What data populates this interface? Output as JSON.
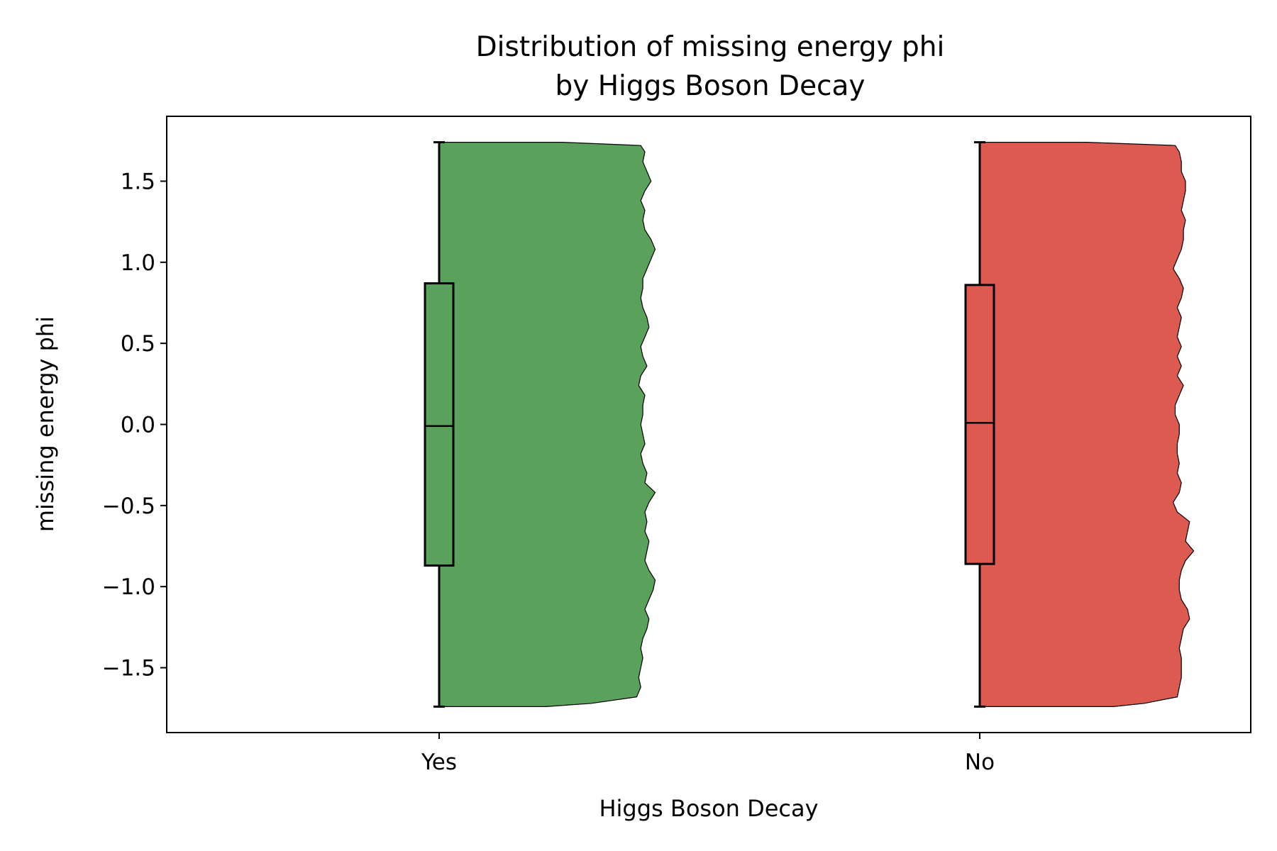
{
  "chart_data": {
    "type": "raincloud",
    "title_lines": [
      "Distribution of missing energy phi",
      "by Higgs Boson Decay"
    ],
    "xlabel": "Higgs Boson Decay",
    "ylabel": "missing energy phi",
    "ylim": [
      -1.9,
      1.9
    ],
    "yticks": [
      1.5,
      1.0,
      0.5,
      0.0,
      -0.5,
      -1.0,
      -1.5
    ],
    "ytick_labels": [
      "1.5",
      "1.0",
      "0.5",
      "0.0",
      "−0.5",
      "−1.0",
      "−1.5"
    ],
    "categories": [
      "Yes",
      "No"
    ],
    "groups": [
      {
        "category": "Yes",
        "color": "#5aa25c",
        "box": {
          "min": -1.74,
          "q1": -0.87,
          "median": -0.01,
          "q3": 0.87,
          "max": 1.74
        },
        "density_y": [
          1.74,
          1.72,
          1.68,
          1.62,
          1.56,
          1.5,
          1.44,
          1.38,
          1.32,
          1.26,
          1.2,
          1.14,
          1.08,
          1.02,
          0.96,
          0.9,
          0.84,
          0.78,
          0.72,
          0.66,
          0.6,
          0.54,
          0.48,
          0.42,
          0.36,
          0.3,
          0.24,
          0.18,
          0.12,
          0.06,
          0.0,
          -0.06,
          -0.12,
          -0.18,
          -0.24,
          -0.3,
          -0.36,
          -0.42,
          -0.48,
          -0.54,
          -0.6,
          -0.66,
          -0.72,
          -0.78,
          -0.84,
          -0.9,
          -0.96,
          -1.02,
          -1.08,
          -1.14,
          -1.2,
          -1.26,
          -1.32,
          -1.38,
          -1.44,
          -1.5,
          -1.56,
          -1.62,
          -1.68,
          -1.72,
          -1.74
        ],
        "density_w": [
          0.6,
          0.98,
          1.0,
          0.99,
          1.01,
          1.03,
          1.0,
          0.98,
          1.0,
          0.99,
          1.0,
          1.03,
          1.05,
          1.03,
          1.01,
          0.99,
          0.99,
          0.98,
          0.99,
          1.01,
          1.02,
          1.0,
          0.98,
          0.99,
          1.01,
          0.98,
          0.97,
          1.0,
          0.99,
          0.99,
          0.98,
          0.99,
          1.0,
          0.98,
          0.99,
          1.01,
          1.0,
          1.05,
          1.02,
          1.0,
          1.01,
          1.0,
          1.02,
          1.01,
          1.0,
          1.02,
          1.05,
          1.04,
          1.02,
          1.0,
          1.02,
          1.01,
          0.99,
          0.98,
          0.99,
          0.98,
          0.97,
          0.98,
          0.96,
          0.74,
          0.52
        ]
      },
      {
        "category": "No",
        "color": "#dd5a50",
        "box": {
          "min": -1.74,
          "q1": -0.86,
          "median": 0.01,
          "q3": 0.86,
          "max": 1.74
        },
        "density_y": [
          1.74,
          1.72,
          1.68,
          1.62,
          1.56,
          1.5,
          1.44,
          1.38,
          1.32,
          1.26,
          1.2,
          1.14,
          1.08,
          1.02,
          0.96,
          0.9,
          0.84,
          0.78,
          0.72,
          0.66,
          0.6,
          0.54,
          0.48,
          0.42,
          0.36,
          0.3,
          0.24,
          0.18,
          0.12,
          0.06,
          0.0,
          -0.06,
          -0.12,
          -0.18,
          -0.24,
          -0.3,
          -0.36,
          -0.42,
          -0.48,
          -0.54,
          -0.6,
          -0.66,
          -0.72,
          -0.78,
          -0.84,
          -0.9,
          -0.96,
          -1.02,
          -1.08,
          -1.14,
          -1.2,
          -1.26,
          -1.32,
          -1.38,
          -1.44,
          -1.5,
          -1.56,
          -1.62,
          -1.68,
          -1.72,
          -1.74
        ],
        "density_w": [
          0.52,
          0.95,
          0.97,
          0.98,
          0.98,
          1.0,
          1.0,
          0.99,
          0.98,
          1.0,
          0.99,
          0.99,
          0.98,
          0.96,
          0.94,
          0.97,
          0.99,
          0.98,
          0.96,
          0.98,
          0.97,
          0.96,
          0.98,
          0.96,
          0.98,
          0.96,
          0.99,
          0.97,
          0.95,
          0.95,
          0.97,
          0.97,
          0.96,
          0.96,
          0.97,
          0.96,
          0.98,
          0.97,
          0.94,
          0.96,
          1.02,
          1.01,
          1.0,
          1.04,
          1.0,
          0.98,
          0.97,
          0.97,
          0.98,
          1.01,
          1.02,
          0.99,
          0.98,
          0.97,
          0.98,
          0.98,
          0.98,
          0.97,
          0.96,
          0.8,
          0.65
        ]
      }
    ]
  }
}
